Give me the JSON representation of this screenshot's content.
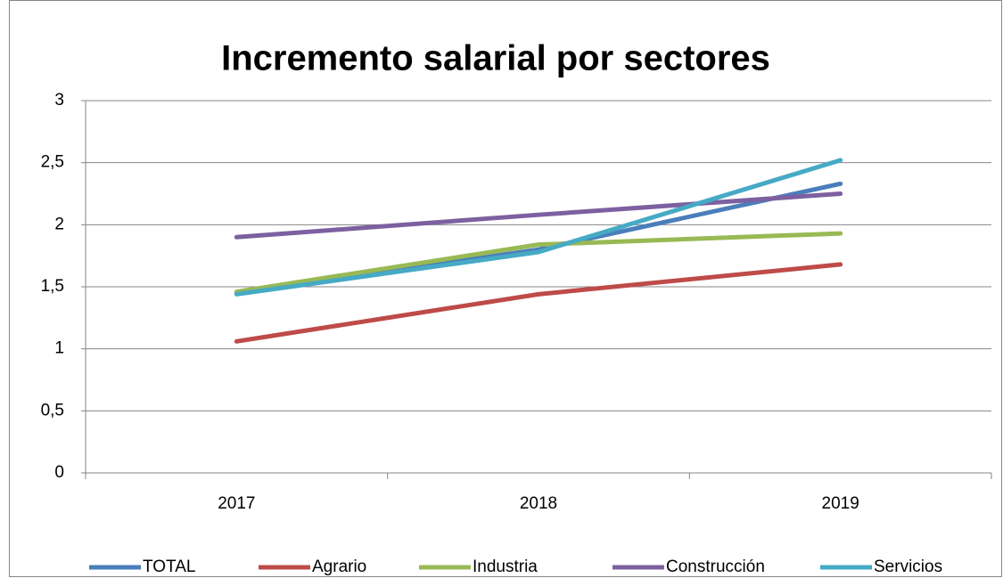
{
  "chart_data": {
    "type": "line",
    "title": "Incremento salarial por sectores",
    "categories": [
      "2017",
      "2018",
      "2019"
    ],
    "series": [
      {
        "name": "TOTAL",
        "color": "#4a7ebb",
        "values": [
          1.45,
          1.8,
          2.33
        ]
      },
      {
        "name": "Agrario",
        "color": "#be4b48",
        "values": [
          1.06,
          1.44,
          1.68
        ]
      },
      {
        "name": "Industria",
        "color": "#98b954",
        "values": [
          1.46,
          1.84,
          1.93
        ]
      },
      {
        "name": "Construcción",
        "color": "#7d60a0",
        "values": [
          1.9,
          2.08,
          2.25
        ]
      },
      {
        "name": "Servicios",
        "color": "#46aac5",
        "values": [
          1.44,
          1.78,
          2.52
        ]
      }
    ],
    "ylim": [
      0,
      3
    ],
    "yticks": [
      0,
      {
        "value": 0.5,
        "label": "0,5"
      },
      1,
      {
        "value": 1.5,
        "label": "1,5"
      },
      2,
      {
        "value": 2.5,
        "label": "2,5"
      },
      3
    ],
    "grid": true,
    "legend": "bottom"
  }
}
